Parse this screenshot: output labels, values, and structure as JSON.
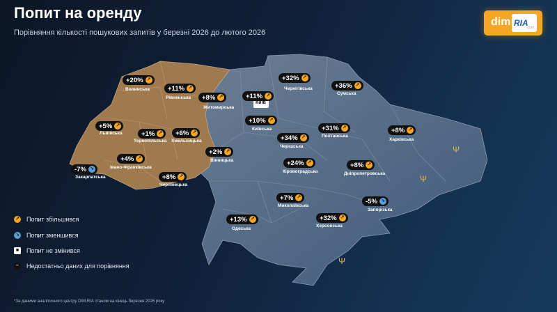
{
  "title": "Попит на оренду",
  "subtitle": "Порівняння кількості пошукових запитів у березні 2026 до лютого 2026",
  "logo": {
    "part1": "dim",
    "part2": "RIA",
    "part3": ".com"
  },
  "capital_label": "Київ",
  "colors": {
    "increase": "#f5a623",
    "decrease": "#5b9fd8",
    "west_region": "#9e7a4e",
    "east_region": "#5c6f86",
    "background": "#0f1d33"
  },
  "regions": [
    {
      "name": "Волинська",
      "change": "+20%",
      "trend": "up"
    },
    {
      "name": "Рівненська",
      "change": "+11%",
      "trend": "up"
    },
    {
      "name": "Житомирська",
      "change": "+8%",
      "trend": "up"
    },
    {
      "name": "Київська",
      "change": "+10%",
      "trend": "up"
    },
    {
      "name": "Київ",
      "change": "+11%",
      "trend": "up"
    },
    {
      "name": "Чернігівська",
      "change": "+32%",
      "trend": "up"
    },
    {
      "name": "Сумська",
      "change": "+36%",
      "trend": "up"
    },
    {
      "name": "Львівська",
      "change": "+5%",
      "trend": "up"
    },
    {
      "name": "Тернопільська",
      "change": "+1%",
      "trend": "up"
    },
    {
      "name": "Хмельницька",
      "change": "+6%",
      "trend": "up"
    },
    {
      "name": "Закарпатська",
      "change": "-7%",
      "trend": "down"
    },
    {
      "name": "Івано-Франківська",
      "change": "+4%",
      "trend": "up"
    },
    {
      "name": "Чернівецька",
      "change": "+8%",
      "trend": "up"
    },
    {
      "name": "Вінницька",
      "change": "+2%",
      "trend": "up"
    },
    {
      "name": "Черкаська",
      "change": "+34%",
      "trend": "up"
    },
    {
      "name": "Полтавська",
      "change": "+31%",
      "trend": "up"
    },
    {
      "name": "Харківська",
      "change": "+8%",
      "trend": "up"
    },
    {
      "name": "Кіровоградська",
      "change": "+24%",
      "trend": "up"
    },
    {
      "name": "Дніпропетровська",
      "change": "+8%",
      "trend": "up"
    },
    {
      "name": "Миколаївська",
      "change": "+7%",
      "trend": "up"
    },
    {
      "name": "Запорізька",
      "change": "-5%",
      "trend": "down"
    },
    {
      "name": "Одеська",
      "change": "+13%",
      "trend": "up"
    },
    {
      "name": "Херсонська",
      "change": "+32%",
      "trend": "up"
    }
  ],
  "legend": [
    {
      "label": "Попит збільшився",
      "icon": "arrow-up-icon"
    },
    {
      "label": "Попит зменшився",
      "icon": "arrow-down-icon"
    },
    {
      "label": "Попит не змінився",
      "icon": "square-icon"
    },
    {
      "label": "Недостатньо даних для порівняння",
      "icon": "dash-icon"
    }
  ],
  "footnote": "*За даними аналітичного центру DIM.RIA станом на кінець березня 2026 року"
}
